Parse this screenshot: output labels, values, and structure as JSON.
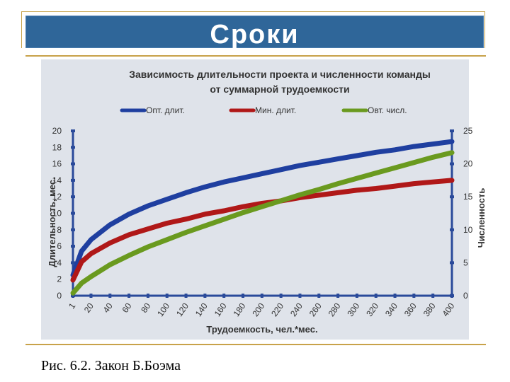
{
  "slide": {
    "title": "Сроки",
    "caption": "Рис. 6.2. Закон Б.Боэма"
  },
  "colors": {
    "title_bar": "#2f6699",
    "frame_gold": "#c8a24a",
    "panel": "#dfe3ea",
    "axis": "#2a4a9a"
  },
  "chart_data": {
    "type": "line",
    "title_line1": "Зависимость длительности проекта и численности команды",
    "title_line2": "от суммарной трудоемкости",
    "xlabel": "Трудоемкость, чел.*мес.",
    "ylabel": "Длительность, мес.",
    "y2label": "Численность",
    "xlim": [
      1,
      400
    ],
    "ylim": [
      0,
      20
    ],
    "y2lim": [
      0,
      25
    ],
    "x_ticks": [
      1,
      20,
      40,
      60,
      80,
      100,
      120,
      140,
      160,
      180,
      200,
      220,
      240,
      260,
      280,
      300,
      320,
      340,
      360,
      380,
      400
    ],
    "y_ticks": [
      0,
      2,
      4,
      6,
      8,
      10,
      12,
      14,
      16,
      18,
      20
    ],
    "y2_ticks": [
      0,
      5,
      10,
      15,
      20,
      25
    ],
    "legend_position": "top",
    "grid": false,
    "series": [
      {
        "name": "Опт. длит.",
        "axis": "left",
        "color": "#1f3fa0",
        "x": [
          1,
          10,
          20,
          40,
          60,
          80,
          100,
          120,
          140,
          160,
          180,
          200,
          220,
          240,
          260,
          280,
          300,
          320,
          340,
          360,
          380,
          400
        ],
        "values": [
          2.5,
          5.4,
          6.8,
          8.6,
          9.9,
          10.9,
          11.7,
          12.5,
          13.2,
          13.8,
          14.3,
          14.8,
          15.3,
          15.8,
          16.2,
          16.6,
          17.0,
          17.4,
          17.7,
          18.1,
          18.4,
          18.7
        ]
      },
      {
        "name": "Мин. длит.",
        "axis": "left",
        "color": "#b01818",
        "x": [
          1,
          10,
          20,
          40,
          60,
          80,
          100,
          120,
          140,
          160,
          180,
          200,
          220,
          240,
          260,
          280,
          300,
          320,
          340,
          360,
          380,
          400
        ],
        "values": [
          1.9,
          4.1,
          5.1,
          6.4,
          7.4,
          8.1,
          8.8,
          9.3,
          9.9,
          10.3,
          10.8,
          11.2,
          11.5,
          11.9,
          12.2,
          12.5,
          12.8,
          13.0,
          13.3,
          13.6,
          13.8,
          14.0
        ]
      },
      {
        "name": "Овт. числ.",
        "axis": "right",
        "color": "#6a9a1f",
        "x": [
          1,
          10,
          20,
          40,
          60,
          80,
          100,
          120,
          140,
          160,
          180,
          200,
          220,
          240,
          260,
          280,
          300,
          320,
          340,
          360,
          380,
          400
        ],
        "values": [
          0.4,
          1.9,
          2.9,
          4.7,
          6.1,
          7.4,
          8.5,
          9.6,
          10.6,
          11.6,
          12.6,
          13.5,
          14.4,
          15.3,
          16.1,
          17.0,
          17.8,
          18.6,
          19.4,
          20.2,
          21.0,
          21.7
        ]
      }
    ]
  }
}
